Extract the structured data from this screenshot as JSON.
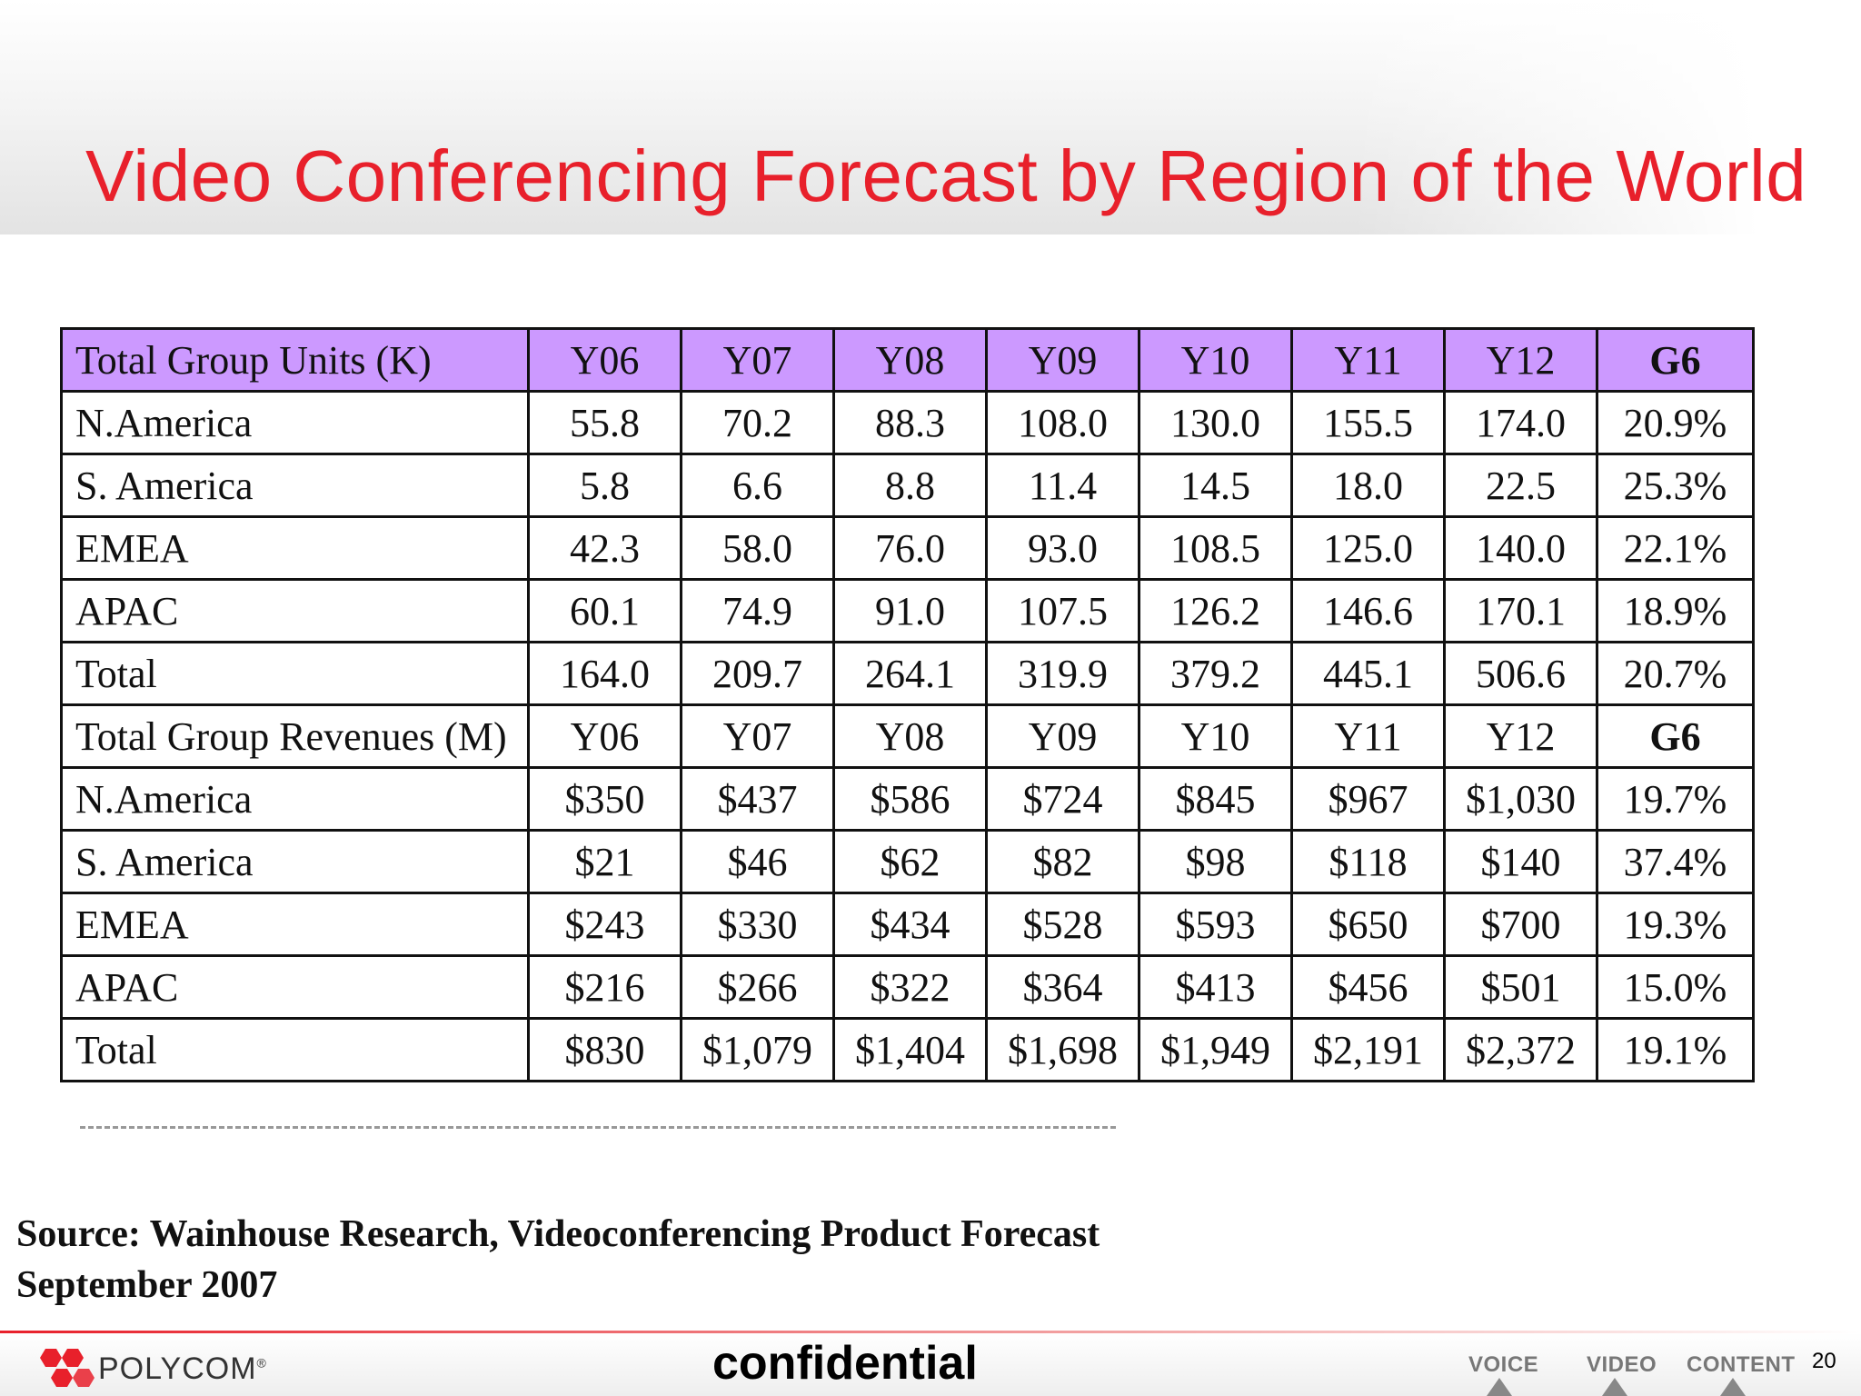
{
  "slide": {
    "title": "Video Conferencing Forecast by Region of the World"
  },
  "table": {
    "units_header": [
      "Total Group Units (K)",
      "Y06",
      "Y07",
      "Y08",
      "Y09",
      "Y10",
      "Y11",
      "Y12",
      "G6"
    ],
    "units_rows": [
      [
        "N.America",
        "55.8",
        "70.2",
        "88.3",
        "108.0",
        "130.0",
        "155.5",
        "174.0",
        "20.9%"
      ],
      [
        "S. America",
        "5.8",
        "6.6",
        "8.8",
        "11.4",
        "14.5",
        "18.0",
        "22.5",
        "25.3%"
      ],
      [
        "EMEA",
        "42.3",
        "58.0",
        "76.0",
        "93.0",
        "108.5",
        "125.0",
        "140.0",
        "22.1%"
      ],
      [
        "APAC",
        "60.1",
        "74.9",
        "91.0",
        "107.5",
        "126.2",
        "146.6",
        "170.1",
        "18.9%"
      ],
      [
        "Total",
        "164.0",
        "209.7",
        "264.1",
        "319.9",
        "379.2",
        "445.1",
        "506.6",
        "20.7%"
      ]
    ],
    "revenue_header": [
      "Total Group Revenues (M)",
      "Y06",
      "Y07",
      "Y08",
      "Y09",
      "Y10",
      "Y11",
      "Y12",
      "G6"
    ],
    "revenue_rows": [
      [
        "N.America",
        "$350",
        "$437",
        "$586",
        "$724",
        "$845",
        "$967",
        "$1,030",
        "19.7%"
      ],
      [
        "S. America",
        "$21",
        "$46",
        "$62",
        "$82",
        "$98",
        "$118",
        "$140",
        "37.4%"
      ],
      [
        "EMEA",
        "$243",
        "$330",
        "$434",
        "$528",
        "$593",
        "$650",
        "$700",
        "19.3%"
      ],
      [
        "APAC",
        "$216",
        "$266",
        "$322",
        "$364",
        "$413",
        "$456",
        "$501",
        "15.0%"
      ],
      [
        "Total",
        "$830",
        "$1,079",
        "$1,404",
        "$1,698",
        "$1,949",
        "$2,191",
        "$2,372",
        "19.1%"
      ]
    ]
  },
  "source": {
    "line1": "Source:  Wainhouse Research, Videoconferencing Product  Forecast",
    "line2": "September 2007"
  },
  "footer": {
    "brand": "POLYCOM",
    "brand_mark": "®",
    "confidential": "confidential",
    "taglines": [
      "VOICE",
      "VIDEO",
      "CONTENT"
    ],
    "page_number": "20",
    "brand_color": "#e8202b"
  }
}
